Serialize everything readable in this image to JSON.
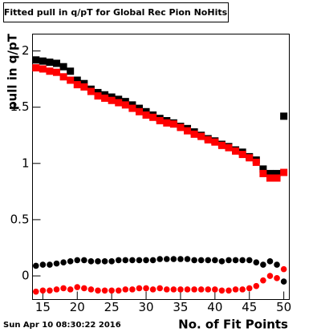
{
  "chart_data": {
    "type": "scatter",
    "title": "Fitted pull in q/pT for Global Rec Pion NoHits",
    "y_label": "pull in q/pT",
    "x_label": "No. of Fit Points",
    "footer": "Sun Apr 10 08:30:22 2016",
    "x": [
      14,
      15,
      16,
      17,
      18,
      19,
      20,
      21,
      22,
      23,
      24,
      25,
      26,
      27,
      28,
      29,
      30,
      31,
      32,
      33,
      34,
      35,
      36,
      37,
      38,
      39,
      40,
      41,
      42,
      43,
      44,
      45,
      46,
      47,
      48,
      49,
      50
    ],
    "series": [
      {
        "color": "#000000",
        "marker": "square",
        "values": [
          1.92,
          1.91,
          1.9,
          1.89,
          1.86,
          1.82,
          1.74,
          1.71,
          1.66,
          1.63,
          1.61,
          1.59,
          1.57,
          1.55,
          1.52,
          1.49,
          1.46,
          1.43,
          1.4,
          1.38,
          1.36,
          1.33,
          1.31,
          1.28,
          1.25,
          1.22,
          1.2,
          1.17,
          1.15,
          1.12,
          1.1,
          1.06,
          1.03,
          0.95,
          0.91,
          0.91,
          1.42
        ]
      },
      {
        "color": "#ff0000",
        "marker": "square",
        "values": [
          1.85,
          1.84,
          1.82,
          1.81,
          1.77,
          1.74,
          1.7,
          1.68,
          1.64,
          1.6,
          1.58,
          1.56,
          1.54,
          1.52,
          1.49,
          1.46,
          1.43,
          1.41,
          1.38,
          1.36,
          1.35,
          1.32,
          1.29,
          1.26,
          1.24,
          1.21,
          1.19,
          1.16,
          1.14,
          1.11,
          1.08,
          1.05,
          1.01,
          0.91,
          0.87,
          0.87,
          0.92
        ]
      },
      {
        "color": "#000000",
        "marker": "circle",
        "values": [
          0.09,
          0.1,
          0.1,
          0.11,
          0.12,
          0.13,
          0.14,
          0.14,
          0.13,
          0.13,
          0.13,
          0.13,
          0.14,
          0.14,
          0.14,
          0.14,
          0.14,
          0.14,
          0.15,
          0.15,
          0.15,
          0.15,
          0.15,
          0.14,
          0.14,
          0.14,
          0.14,
          0.13,
          0.14,
          0.14,
          0.14,
          0.14,
          0.12,
          0.1,
          0.13,
          0.1,
          -0.05
        ]
      },
      {
        "color": "#ff0000",
        "marker": "circle",
        "values": [
          -0.14,
          -0.13,
          -0.13,
          -0.12,
          -0.11,
          -0.12,
          -0.1,
          -0.11,
          -0.12,
          -0.13,
          -0.13,
          -0.13,
          -0.13,
          -0.12,
          -0.12,
          -0.11,
          -0.11,
          -0.12,
          -0.11,
          -0.12,
          -0.12,
          -0.12,
          -0.12,
          -0.12,
          -0.12,
          -0.12,
          -0.12,
          -0.13,
          -0.13,
          -0.12,
          -0.12,
          -0.11,
          -0.09,
          -0.04,
          0.0,
          -0.02,
          0.06
        ]
      }
    ],
    "xlim": [
      13.5,
      50.8
    ],
    "ylim": [
      -0.21,
      2.15
    ],
    "xticks": [
      15,
      20,
      25,
      30,
      35,
      40,
      45,
      50
    ],
    "yticks": [
      0,
      0.5,
      1,
      1.5,
      2
    ]
  }
}
